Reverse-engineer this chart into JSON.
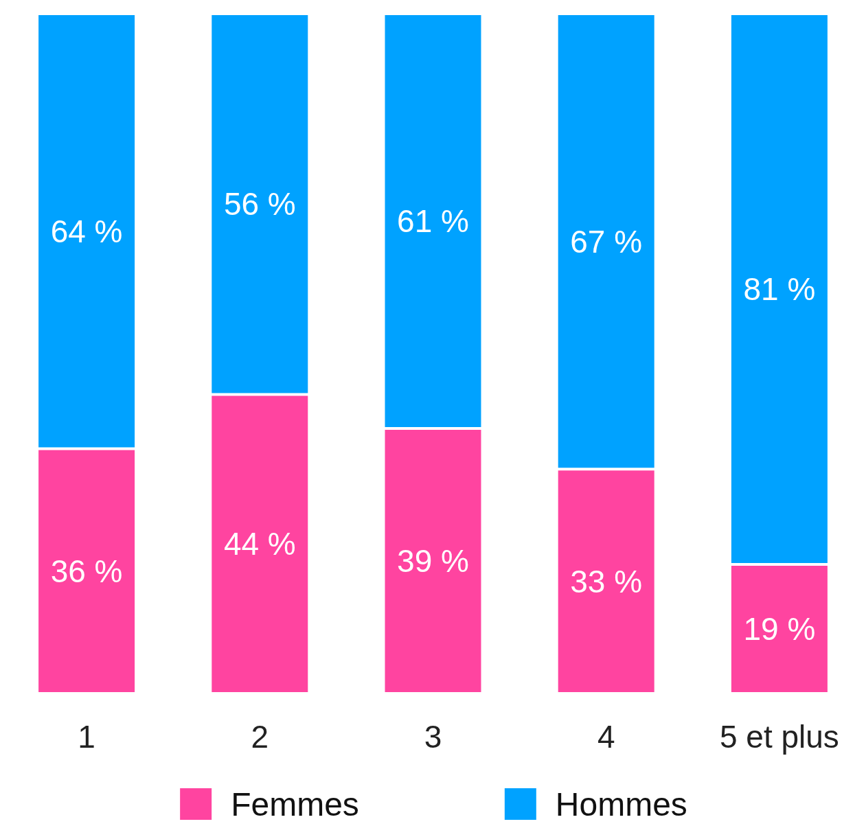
{
  "chart_data": {
    "type": "bar",
    "stacked": true,
    "categories": [
      "1",
      "2",
      "3",
      "4",
      "5 et plus"
    ],
    "series": [
      {
        "name": "Femmes",
        "color": "#ff44a0",
        "values": [
          36,
          44,
          39,
          33,
          19
        ],
        "value_labels": [
          "36 %",
          "44 %",
          "39 %",
          "33 %",
          "19 %"
        ]
      },
      {
        "name": "Hommes",
        "color": "#00a2ff",
        "values": [
          64,
          56,
          61,
          67,
          81
        ],
        "value_labels": [
          "64 %",
          "56 %",
          "61 %",
          "67 %",
          "81 %"
        ]
      }
    ],
    "legend": "bottom"
  }
}
